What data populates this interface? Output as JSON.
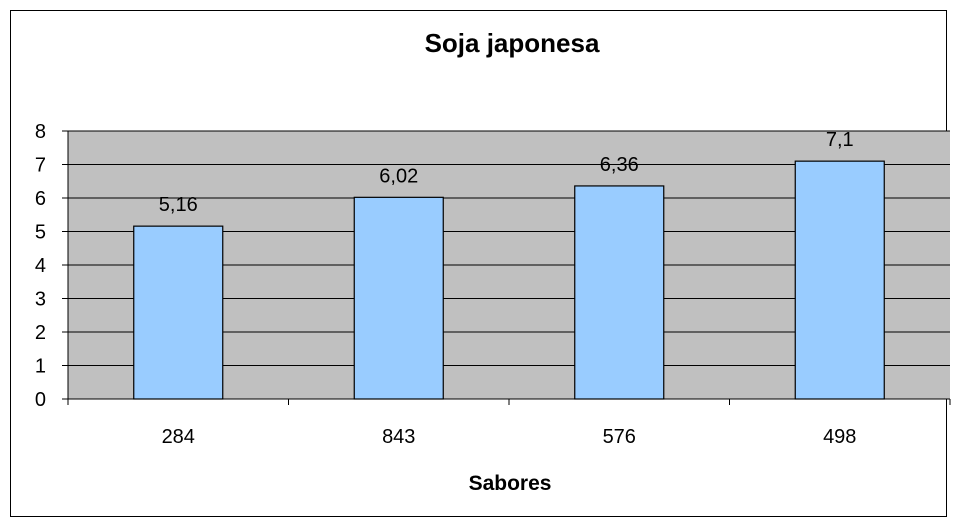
{
  "chart_data": {
    "type": "bar",
    "title": "Soja japonesa",
    "xlabel": "Sabores",
    "ylabel": "",
    "categories": [
      "284",
      "843",
      "576",
      "498"
    ],
    "values": [
      5.16,
      6.02,
      6.36,
      7.1
    ],
    "data_labels": [
      "5,16",
      "6,02",
      "6,36",
      "7,1"
    ],
    "ylim": [
      0,
      8
    ],
    "yticks": [
      "0",
      "1",
      "2",
      "3",
      "4",
      "5",
      "6",
      "7",
      "8"
    ],
    "grid": true,
    "legend": "none",
    "colors": {
      "plot_background": "#c0c0c0",
      "bar_fill": "#99ccff",
      "bar_stroke": "#000000",
      "gridline": "#000000"
    }
  }
}
